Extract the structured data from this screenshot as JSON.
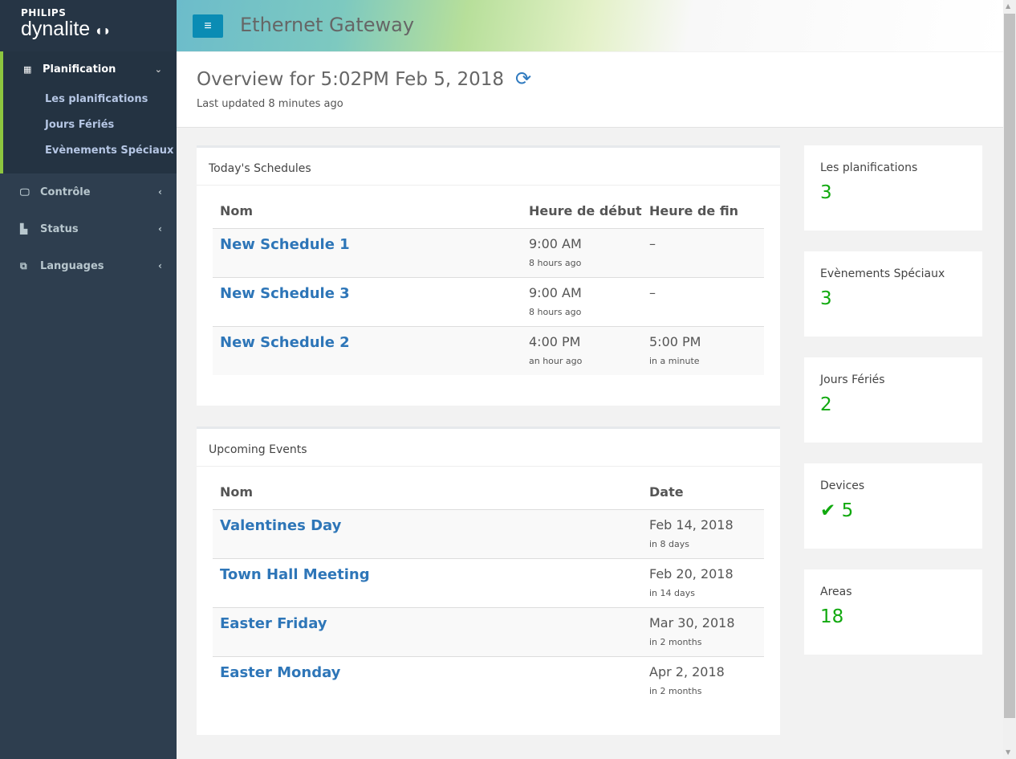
{
  "brand": {
    "top": "PHILIPS",
    "name": "dynalite"
  },
  "sidebar": {
    "planification": {
      "label": "Planification",
      "items": [
        "Les planifications",
        "Jours Fériés",
        "Evènements Spéciaux"
      ]
    },
    "items": [
      {
        "label": "Contrôle",
        "icon": "desktop-icon"
      },
      {
        "label": "Status",
        "icon": "bar-chart-icon"
      },
      {
        "label": "Languages",
        "icon": "language-icon"
      }
    ]
  },
  "header": {
    "title": "Ethernet Gateway"
  },
  "overview": {
    "title": "Overview for 5:02PM Feb 5, 2018",
    "subtitle": "Last updated 8 minutes ago"
  },
  "schedules": {
    "title": "Today's Schedules",
    "columns": [
      "Nom",
      "Heure de début",
      "Heure de fin"
    ],
    "rows": [
      {
        "name": "New Schedule 1",
        "start": "9:00 AM",
        "start_rel": "8 hours ago",
        "end": "–",
        "end_rel": ""
      },
      {
        "name": "New Schedule 3",
        "start": "9:00 AM",
        "start_rel": "8 hours ago",
        "end": "–",
        "end_rel": ""
      },
      {
        "name": "New Schedule 2",
        "start": "4:00 PM",
        "start_rel": "an hour ago",
        "end": "5:00 PM",
        "end_rel": "in a minute"
      }
    ]
  },
  "events": {
    "title": "Upcoming Events",
    "columns": [
      "Nom",
      "Date"
    ],
    "rows": [
      {
        "name": "Valentines Day",
        "date": "Feb 14, 2018",
        "rel": "in 8 days"
      },
      {
        "name": "Town Hall Meeting",
        "date": "Feb 20, 2018",
        "rel": "in 14 days"
      },
      {
        "name": "Easter Friday",
        "date": "Mar 30, 2018",
        "rel": "in 2 months"
      },
      {
        "name": "Easter Monday",
        "date": "Apr 2, 2018",
        "rel": "in 2 months"
      }
    ]
  },
  "stats": [
    {
      "label": "Les planifications",
      "value": "3"
    },
    {
      "label": "Evènements Spéciaux",
      "value": "3"
    },
    {
      "label": "Jours Fériés",
      "value": "2"
    },
    {
      "label": "Devices",
      "value": "5",
      "icon": "check-icon"
    },
    {
      "label": "Areas",
      "value": "18"
    }
  ],
  "colors": {
    "accent": "#2e76b8",
    "success": "#11a90f",
    "sidebar": "#2e3e4f",
    "active_border": "#8dc63f",
    "menu_button": "#0a8cb4"
  }
}
